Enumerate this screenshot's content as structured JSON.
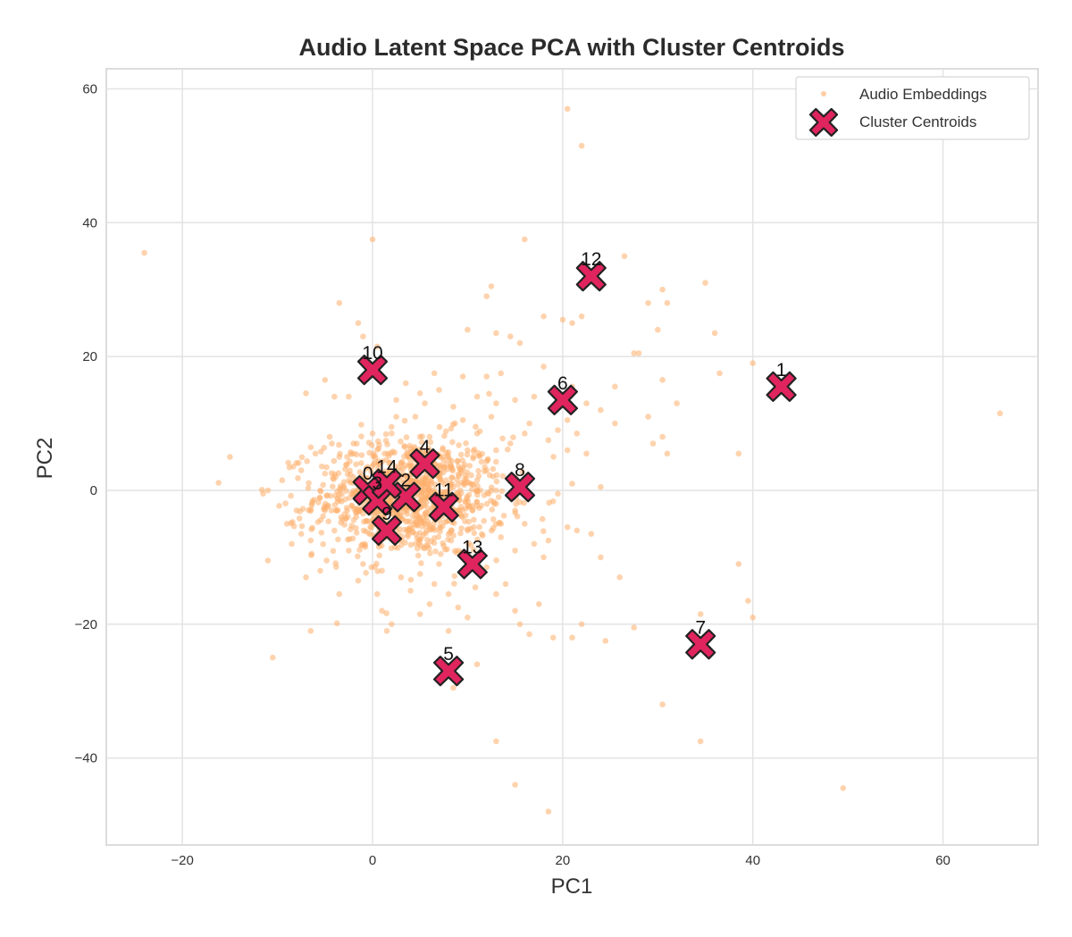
{
  "chart_data": {
    "type": "scatter",
    "title": "Audio Latent Space PCA with Cluster Centroids",
    "xlabel": "PC1",
    "ylabel": "PC2",
    "xlim": [
      -28,
      70
    ],
    "ylim": [
      -53,
      63
    ],
    "xticks": [
      -20,
      0,
      20,
      40,
      60
    ],
    "yticks": [
      -40,
      -20,
      0,
      20,
      40,
      60
    ],
    "grid": true,
    "legend_position": "top-right",
    "colors": {
      "embeddings": "#fdae6b",
      "centroid_fill": "#e0245e",
      "centroid_edge": "#222222"
    },
    "series": [
      {
        "name": "Audio Embeddings",
        "marker": "dot",
        "points": [
          [
            -24,
            35.5
          ],
          [
            0,
            37.5
          ],
          [
            -3.5,
            28
          ],
          [
            16,
            37.5
          ],
          [
            20.5,
            57
          ],
          [
            22,
            51.5
          ],
          [
            26.5,
            35
          ],
          [
            35,
            31
          ],
          [
            29,
            28
          ],
          [
            31,
            28
          ],
          [
            30.5,
            30
          ],
          [
            20,
            25.5
          ],
          [
            21,
            25
          ],
          [
            22,
            26
          ],
          [
            18,
            26
          ],
          [
            12,
            29
          ],
          [
            12.5,
            30.5
          ],
          [
            -1.5,
            25
          ],
          [
            -1,
            23
          ],
          [
            0.5,
            21.5
          ],
          [
            13,
            23.5
          ],
          [
            14.5,
            23
          ],
          [
            15.5,
            22
          ],
          [
            10,
            24
          ],
          [
            36,
            23.5
          ],
          [
            30,
            24
          ],
          [
            27.5,
            20.5
          ],
          [
            28,
            20.5
          ],
          [
            36.5,
            17.5
          ],
          [
            40,
            19
          ],
          [
            30.5,
            16.5
          ],
          [
            25.5,
            15.5
          ],
          [
            -5,
            16.5
          ],
          [
            -4,
            14
          ],
          [
            -7,
            14.5
          ],
          [
            -2.5,
            14
          ],
          [
            18,
            18.5
          ],
          [
            21,
            15.5
          ],
          [
            22.5,
            13
          ],
          [
            17,
            14
          ],
          [
            15,
            13.5
          ],
          [
            13.5,
            17.5
          ],
          [
            12,
            17
          ],
          [
            24,
            12
          ],
          [
            25.5,
            10
          ],
          [
            29,
            11
          ],
          [
            32,
            13
          ],
          [
            21.5,
            8.5
          ],
          [
            29.5,
            7
          ],
          [
            30.5,
            8
          ],
          [
            31,
            5.5
          ],
          [
            38.5,
            5.5
          ],
          [
            66,
            11.5
          ],
          [
            -15,
            5
          ],
          [
            -11.5,
            -0.5
          ],
          [
            -11,
            0
          ],
          [
            -7.5,
            3
          ],
          [
            -6,
            5.5
          ],
          [
            -4.5,
            8
          ],
          [
            -9,
            -5
          ],
          [
            -7.5,
            -6.5
          ],
          [
            -8.5,
            -8
          ],
          [
            -6.5,
            -7.5
          ],
          [
            -11,
            -10.5
          ],
          [
            -7,
            -13
          ],
          [
            -5.5,
            -12
          ],
          [
            -3.5,
            -15.5
          ],
          [
            -6.5,
            -21
          ],
          [
            -10.5,
            -25
          ],
          [
            1.5,
            -21
          ],
          [
            2,
            -20
          ],
          [
            1,
            -18
          ],
          [
            5,
            -18.5
          ],
          [
            6,
            -17
          ],
          [
            8,
            -15.5
          ],
          [
            9,
            -17.5
          ],
          [
            10,
            -19
          ],
          [
            8,
            -21
          ],
          [
            13,
            -15.5
          ],
          [
            15,
            -18
          ],
          [
            15.5,
            -20
          ],
          [
            16.5,
            -21.5
          ],
          [
            17.5,
            -17
          ],
          [
            19,
            -22
          ],
          [
            21,
            -22
          ],
          [
            22,
            -20
          ],
          [
            24.5,
            -22.5
          ],
          [
            27.5,
            -20.5
          ],
          [
            26,
            -13
          ],
          [
            24,
            -10
          ],
          [
            20.5,
            -5.5
          ],
          [
            21.5,
            -6
          ],
          [
            23,
            -6.5
          ],
          [
            24,
            0.5
          ],
          [
            21,
            1
          ],
          [
            19.5,
            -0.5
          ],
          [
            22.5,
            5.5
          ],
          [
            20.5,
            6
          ],
          [
            38.5,
            -11
          ],
          [
            39.5,
            -16.5
          ],
          [
            40,
            -19
          ],
          [
            34.5,
            -18.5
          ],
          [
            34.5,
            -37.5
          ],
          [
            30.5,
            -32
          ],
          [
            49.5,
            -44.5
          ],
          [
            13,
            -37.5
          ],
          [
            15,
            -44
          ],
          [
            18.5,
            -48
          ],
          [
            8.5,
            -29.5
          ],
          [
            11,
            -26
          ],
          [
            12,
            -11.5
          ],
          [
            14,
            -14
          ],
          [
            15,
            -9
          ],
          [
            17,
            -8
          ],
          [
            18.5,
            -7.5
          ],
          [
            18,
            -10
          ],
          [
            16,
            -5
          ],
          [
            15,
            -3
          ],
          [
            13.5,
            -7
          ],
          [
            13,
            -2
          ],
          [
            12,
            3
          ],
          [
            13,
            6
          ],
          [
            14.5,
            7
          ],
          [
            16,
            8.5
          ],
          [
            16.5,
            10
          ],
          [
            18.5,
            7.5
          ],
          [
            19.5,
            9
          ],
          [
            20.5,
            10.5
          ],
          [
            11,
            8.5
          ],
          [
            9.5,
            10.5
          ],
          [
            8.5,
            12.5
          ],
          [
            7,
            15
          ],
          [
            5,
            14.5
          ],
          [
            3.5,
            16
          ],
          [
            2.5,
            13.5
          ],
          [
            4.5,
            11
          ],
          [
            6,
            8
          ],
          [
            8,
            5
          ],
          [
            10,
            6
          ],
          [
            11,
            1.5
          ],
          [
            10.5,
            -3
          ],
          [
            10,
            -6
          ],
          [
            9,
            -9
          ],
          [
            7,
            -11
          ],
          [
            5,
            -12.5
          ],
          [
            3,
            -13
          ],
          [
            1,
            -12
          ],
          [
            -1,
            -11
          ],
          [
            -2.5,
            -9
          ],
          [
            -4,
            -6
          ],
          [
            -5,
            -3
          ],
          [
            -5.5,
            0
          ],
          [
            -5,
            2.5
          ],
          [
            -3.5,
            5
          ],
          [
            -2,
            7
          ],
          [
            0,
            8.5
          ],
          [
            2,
            9.5
          ],
          [
            -1.5,
            -13.5
          ],
          [
            0.5,
            -15.5
          ],
          [
            4,
            -15
          ],
          [
            6.5,
            -14
          ],
          [
            -8,
            -3
          ],
          [
            -9.5,
            1.5
          ],
          [
            6.5,
            17.5
          ],
          [
            9.5,
            17
          ],
          [
            5.5,
            13
          ],
          [
            2.5,
            11
          ],
          [
            12.5,
            11
          ],
          [
            13,
            13
          ],
          [
            11,
            14
          ]
        ]
      },
      {
        "name": "Cluster Centroids",
        "marker": "X",
        "points": [
          {
            "label": "0",
            "x": -0.5,
            "y": 0
          },
          {
            "label": "1",
            "x": 43,
            "y": 15.5
          },
          {
            "label": "2",
            "x": 3.5,
            "y": -1
          },
          {
            "label": "3",
            "x": 0.5,
            "y": -1.5
          },
          {
            "label": "4",
            "x": 5.5,
            "y": 4
          },
          {
            "label": "5",
            "x": 8,
            "y": -27
          },
          {
            "label": "6",
            "x": 20,
            "y": 13.5
          },
          {
            "label": "7",
            "x": 34.5,
            "y": -23
          },
          {
            "label": "8",
            "x": 15.5,
            "y": 0.5
          },
          {
            "label": "9",
            "x": 1.5,
            "y": -6
          },
          {
            "label": "10",
            "x": 0,
            "y": 18
          },
          {
            "label": "11",
            "x": 7.5,
            "y": -2.5
          },
          {
            "label": "12",
            "x": 23,
            "y": 32
          },
          {
            "label": "13",
            "x": 10.5,
            "y": -11
          },
          {
            "label": "14",
            "x": 1.5,
            "y": 1
          }
        ]
      }
    ],
    "dense_cluster": {
      "center": [
        4,
        -1
      ],
      "spread": [
        5,
        4.5
      ],
      "count": 1000
    }
  }
}
